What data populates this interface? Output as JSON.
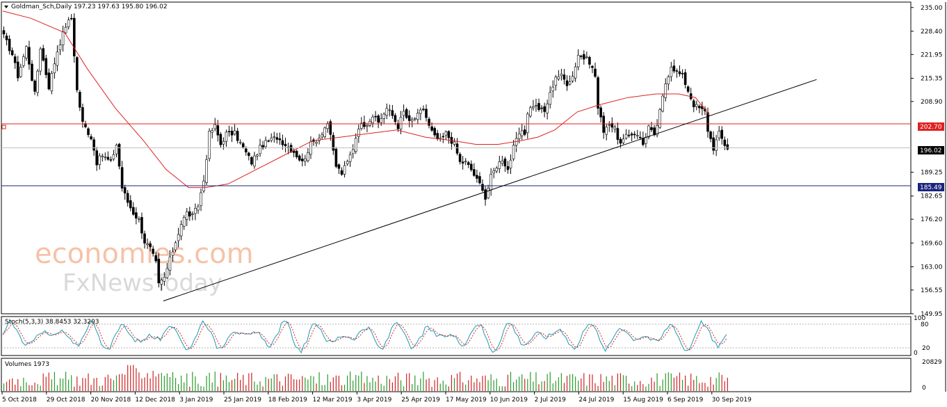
{
  "header": {
    "symbol_label": "Goldman_Sch,Daily",
    "ohlc_values": "197.23 197.63 195.80 196.02"
  },
  "stoch": {
    "label": "Stoch(5,3,3) 38.8453 32.3203"
  },
  "volume": {
    "label": "Volumes 1973"
  },
  "watermark": {
    "line1": "economies.com",
    "line2": "FxNewsToday"
  },
  "chart_data": {
    "type": "candlestick",
    "price_axis": {
      "ylim": [
        149.95,
        236.5
      ],
      "ticks": [
        "235.00",
        "228.40",
        "221.95",
        "215.35",
        "208.90",
        "202.70",
        "196.02",
        "189.25",
        "182.65",
        "176.20",
        "169.60",
        "163.00",
        "156.55",
        "149.95"
      ]
    },
    "horizontal_lines": [
      {
        "name": "resistance",
        "value": 202.7,
        "label": "202.70",
        "color": "#e02020"
      },
      {
        "name": "support",
        "value": 185.49,
        "label": "185.49",
        "color": "#1a237e"
      }
    ],
    "current_price": {
      "value": 196.02,
      "label": "196.02"
    },
    "x_labels": [
      "5 Oct 2018",
      "29 Oct 2018",
      "20 Nov 2018",
      "12 Dec 2018",
      "3 Jan 2019",
      "25 Jan 2019",
      "18 Feb 2019",
      "12 Mar 2019",
      "3 Apr 2019",
      "25 Apr 2019",
      "17 May 2019",
      "10 Jun 2019",
      "2 Jul 2019",
      "24 Jul 2019",
      "15 Aug 2019",
      "6 Sep 2019",
      "30 Sep 2019"
    ],
    "bar_count": 258,
    "anchors": [
      [
        0,
        227
      ],
      [
        3,
        222
      ],
      [
        5,
        216
      ],
      [
        8,
        224
      ],
      [
        11,
        211
      ],
      [
        13,
        224
      ],
      [
        16,
        213
      ],
      [
        19,
        223
      ],
      [
        22,
        230
      ],
      [
        24,
        232
      ],
      [
        26,
        212
      ],
      [
        28,
        203
      ],
      [
        31,
        199
      ],
      [
        33,
        192
      ],
      [
        35,
        194
      ],
      [
        38,
        192
      ],
      [
        40,
        197
      ],
      [
        42,
        185
      ],
      [
        44,
        181
      ],
      [
        46,
        178
      ],
      [
        48,
        176
      ],
      [
        50,
        170
      ],
      [
        52,
        168
      ],
      [
        54,
        164
      ],
      [
        55,
        158
      ],
      [
        57,
        160
      ],
      [
        59,
        165
      ],
      [
        61,
        170
      ],
      [
        63,
        175
      ],
      [
        65,
        178
      ],
      [
        67,
        177
      ],
      [
        69,
        180
      ],
      [
        71,
        187
      ],
      [
        73,
        200
      ],
      [
        75,
        202
      ],
      [
        77,
        197
      ],
      [
        79,
        200
      ],
      [
        82,
        200
      ],
      [
        85,
        196
      ],
      [
        88,
        192
      ],
      [
        91,
        196
      ],
      [
        94,
        198
      ],
      [
        97,
        199
      ],
      [
        100,
        197
      ],
      [
        103,
        195
      ],
      [
        106,
        192
      ],
      [
        109,
        197
      ],
      [
        112,
        199
      ],
      [
        115,
        203
      ],
      [
        116,
        199
      ],
      [
        118,
        191
      ],
      [
        120,
        189
      ],
      [
        122,
        192
      ],
      [
        124,
        196
      ],
      [
        126,
        202
      ],
      [
        129,
        203
      ],
      [
        131,
        205
      ],
      [
        133,
        203
      ],
      [
        136,
        207
      ],
      [
        138,
        205
      ],
      [
        140,
        202
      ],
      [
        142,
        206
      ],
      [
        144,
        203
      ],
      [
        147,
        205
      ],
      [
        149,
        207
      ],
      [
        151,
        202
      ],
      [
        153,
        199
      ],
      [
        155,
        198
      ],
      [
        157,
        200
      ],
      [
        160,
        197
      ],
      [
        162,
        192
      ],
      [
        164,
        192
      ],
      [
        166,
        190
      ],
      [
        168,
        187
      ],
      [
        170,
        185
      ],
      [
        171,
        182
      ],
      [
        173,
        188
      ],
      [
        175,
        191
      ],
      [
        177,
        193
      ],
      [
        179,
        190
      ],
      [
        181,
        196
      ],
      [
        183,
        200
      ],
      [
        185,
        200
      ],
      [
        186,
        206
      ],
      [
        188,
        208
      ],
      [
        190,
        207
      ],
      [
        192,
        206
      ],
      [
        194,
        211
      ],
      [
        196,
        216
      ],
      [
        198,
        216
      ],
      [
        200,
        214
      ],
      [
        202,
        216
      ],
      [
        204,
        222
      ],
      [
        206,
        221
      ],
      [
        208,
        220
      ],
      [
        210,
        216
      ],
      [
        211,
        207
      ],
      [
        213,
        201
      ],
      [
        215,
        203
      ],
      [
        217,
        201
      ],
      [
        219,
        197
      ],
      [
        221,
        199
      ],
      [
        223,
        200
      ],
      [
        225,
        200
      ],
      [
        227,
        197
      ],
      [
        229,
        202
      ],
      [
        231,
        199
      ],
      [
        233,
        206
      ],
      [
        235,
        214
      ],
      [
        237,
        219
      ],
      [
        239,
        217
      ],
      [
        241,
        216
      ],
      [
        243,
        212
      ],
      [
        245,
        208
      ],
      [
        247,
        207
      ],
      [
        249,
        206
      ],
      [
        250,
        201
      ],
      [
        252,
        196
      ],
      [
        254,
        200
      ],
      [
        256,
        197
      ],
      [
        257,
        196
      ]
    ],
    "moving_average": [
      [
        0,
        234
      ],
      [
        10,
        232
      ],
      [
        22,
        228
      ],
      [
        30,
        218
      ],
      [
        40,
        207
      ],
      [
        50,
        198
      ],
      [
        58,
        190
      ],
      [
        66,
        185
      ],
      [
        72,
        185
      ],
      [
        80,
        186
      ],
      [
        90,
        190
      ],
      [
        100,
        194
      ],
      [
        110,
        198
      ],
      [
        120,
        199
      ],
      [
        130,
        200
      ],
      [
        140,
        201
      ],
      [
        150,
        199
      ],
      [
        160,
        198
      ],
      [
        168,
        197
      ],
      [
        176,
        197
      ],
      [
        184,
        198
      ],
      [
        190,
        199
      ],
      [
        196,
        201
      ],
      [
        204,
        206
      ],
      [
        212,
        208
      ],
      [
        222,
        210
      ],
      [
        232,
        211
      ],
      [
        240,
        211
      ],
      [
        246,
        210
      ],
      [
        251,
        205
      ]
    ],
    "trendline": {
      "from": [
        57,
        153.5
      ],
      "to": [
        289,
        215
      ]
    },
    "stochastic": {
      "ylim": [
        0,
        100
      ],
      "ticks": [
        "100",
        "80",
        "20",
        "0"
      ],
      "levels": [
        80,
        20
      ],
      "main_color": "#1a9ab3",
      "signal_color": "#e02020"
    },
    "volumes": {
      "ticks": [
        "20829",
        "0"
      ],
      "up_color": "#2a9a2a",
      "down_color": "#cc2222"
    }
  }
}
